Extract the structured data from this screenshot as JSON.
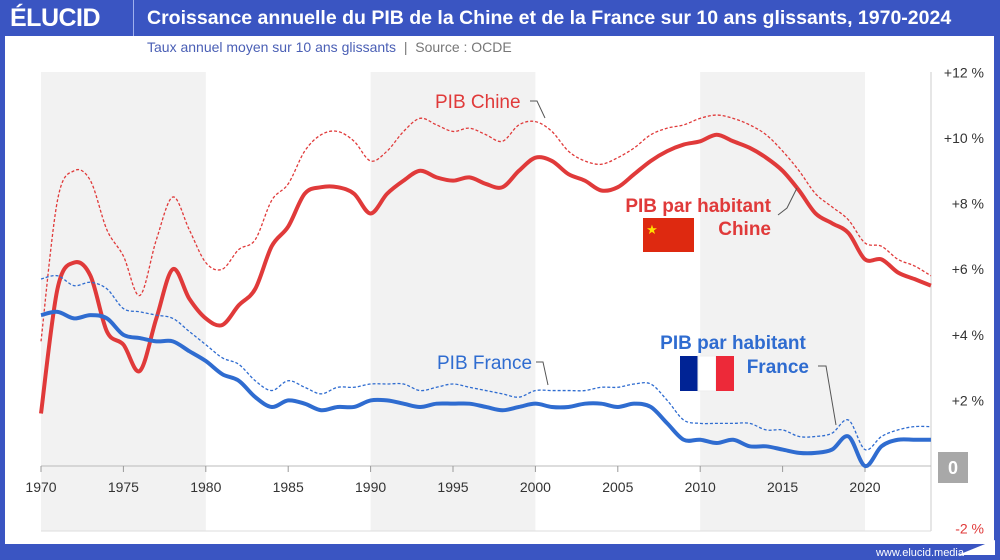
{
  "header": {
    "logo": "ÉLUCID",
    "title": "Croissance annuelle du PIB de la Chine et de la France sur 10 ans glissants, 1970-2024"
  },
  "subtitle": {
    "text": "Taux annuel moyen sur 10 ans glissants",
    "separator": "|",
    "source": "Source : OCDE"
  },
  "footer": {
    "url": "www.elucid.media"
  },
  "colors": {
    "china": "#e03a3a",
    "france": "#2f6cd0",
    "frame": "#3a55c2",
    "band": "#f2f2f2"
  },
  "chart_data": {
    "type": "line",
    "xlim": [
      1970,
      2024
    ],
    "ylim": [
      -2,
      12
    ],
    "x_ticks": [
      1970,
      1975,
      1980,
      1985,
      1990,
      1995,
      2000,
      2005,
      2010,
      2015,
      2020
    ],
    "y_ticks": [
      "+12 %",
      "+10 %",
      "+8 %",
      "+6 %",
      "+4 %",
      "+2 %",
      "0",
      "-2 %"
    ],
    "y_tick_values": [
      12,
      10,
      8,
      6,
      4,
      2,
      0,
      -2
    ],
    "x": [
      1970,
      1971,
      1972,
      1973,
      1974,
      1975,
      1976,
      1977,
      1978,
      1979,
      1980,
      1981,
      1982,
      1983,
      1984,
      1985,
      1986,
      1987,
      1988,
      1989,
      1990,
      1991,
      1992,
      1993,
      1994,
      1995,
      1996,
      1997,
      1998,
      1999,
      2000,
      2001,
      2002,
      2003,
      2004,
      2005,
      2006,
      2007,
      2008,
      2009,
      2010,
      2011,
      2012,
      2013,
      2014,
      2015,
      2016,
      2017,
      2018,
      2019,
      2020,
      2021,
      2022,
      2023,
      2024
    ],
    "series": [
      {
        "name": "PIB Chine",
        "style": "dashed",
        "color": "#e03a3a",
        "values": [
          3.8,
          8.1,
          9.0,
          8.7,
          7.2,
          6.4,
          5.2,
          6.9,
          8.2,
          7.2,
          6.2,
          6.0,
          6.6,
          6.9,
          8.1,
          8.6,
          9.6,
          10.1,
          10.2,
          9.9,
          9.3,
          9.6,
          10.2,
          10.6,
          10.4,
          10.2,
          10.3,
          10.1,
          9.9,
          10.4,
          10.5,
          10.2,
          9.6,
          9.3,
          9.2,
          9.4,
          9.7,
          10.1,
          10.3,
          10.4,
          10.6,
          10.7,
          10.6,
          10.4,
          10.1,
          9.6,
          9.0,
          8.3,
          7.9,
          7.5,
          6.8,
          6.7,
          6.3,
          6.1,
          5.8
        ]
      },
      {
        "name": "PIB par habitant Chine",
        "style": "solid",
        "color": "#e03a3a",
        "values": [
          1.6,
          5.4,
          6.2,
          5.8,
          4.1,
          3.7,
          2.9,
          4.5,
          6.0,
          5.1,
          4.5,
          4.3,
          4.9,
          5.4,
          6.7,
          7.3,
          8.3,
          8.5,
          8.5,
          8.3,
          7.7,
          8.3,
          8.7,
          9.0,
          8.8,
          8.7,
          8.8,
          8.6,
          8.5,
          9.0,
          9.4,
          9.3,
          8.9,
          8.7,
          8.4,
          8.5,
          8.9,
          9.3,
          9.6,
          9.8,
          9.9,
          10.1,
          9.9,
          9.7,
          9.4,
          9.0,
          8.4,
          7.7,
          7.4,
          7.1,
          6.3,
          6.3,
          5.9,
          5.7,
          5.5
        ]
      },
      {
        "name": "PIB France",
        "style": "dashed",
        "color": "#2f6cd0",
        "values": [
          5.7,
          5.8,
          5.5,
          5.6,
          5.4,
          4.8,
          4.7,
          4.6,
          4.5,
          4.1,
          3.7,
          3.3,
          3.1,
          2.6,
          2.3,
          2.6,
          2.4,
          2.2,
          2.4,
          2.4,
          2.5,
          2.5,
          2.5,
          2.3,
          2.4,
          2.5,
          2.4,
          2.3,
          2.2,
          2.1,
          2.3,
          2.3,
          2.3,
          2.3,
          2.4,
          2.4,
          2.5,
          2.5,
          2.0,
          1.4,
          1.3,
          1.3,
          1.3,
          1.3,
          1.1,
          1.1,
          0.9,
          0.9,
          1.0,
          1.4,
          0.5,
          0.9,
          1.1,
          1.2,
          1.2
        ]
      },
      {
        "name": "PIB par habitant France",
        "style": "solid",
        "color": "#2f6cd0",
        "values": [
          4.6,
          4.7,
          4.5,
          4.6,
          4.5,
          4.0,
          3.9,
          3.8,
          3.8,
          3.5,
          3.2,
          2.8,
          2.6,
          2.1,
          1.8,
          2.0,
          1.9,
          1.7,
          1.8,
          1.8,
          2.0,
          2.0,
          1.9,
          1.8,
          1.9,
          1.9,
          1.9,
          1.8,
          1.7,
          1.8,
          1.9,
          1.8,
          1.8,
          1.9,
          1.9,
          1.8,
          1.9,
          1.8,
          1.3,
          0.8,
          0.8,
          0.7,
          0.8,
          0.6,
          0.6,
          0.5,
          0.4,
          0.4,
          0.5,
          0.9,
          0.0,
          0.6,
          0.8,
          0.8,
          0.8
        ]
      }
    ],
    "annotations": {
      "china_gdp": "PIB Chine",
      "china_pc_1": "PIB par habitant",
      "china_pc_2": "Chine",
      "france_gdp": "PIB France",
      "france_pc_1": "PIB par habitant",
      "france_pc_2": "France"
    },
    "shaded_bands": [
      [
        1970,
        1980
      ],
      [
        1990,
        2000
      ],
      [
        2010,
        2020
      ]
    ],
    "grid": false,
    "legend": "none"
  }
}
